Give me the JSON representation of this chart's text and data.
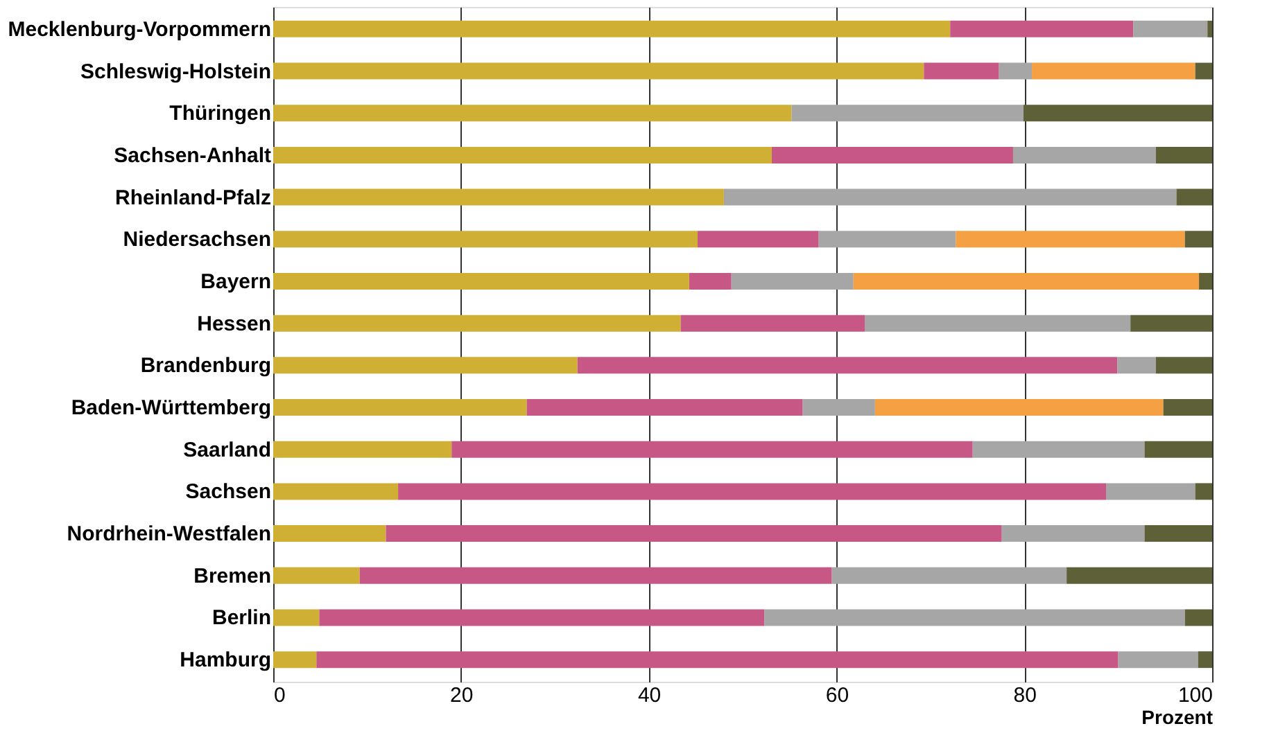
{
  "chart_data": {
    "type": "bar",
    "orientation": "horizontal",
    "stacked": true,
    "xlabel": "Prozent",
    "xlim": [
      0,
      100
    ],
    "xticks": [
      0,
      20,
      40,
      60,
      80,
      100
    ],
    "grid": "x",
    "legend": false,
    "categories": [
      "Mecklenburg-Vorpommern",
      "Schleswig-Holstein",
      "Thüringen",
      "Sachsen-Anhalt",
      "Rheinland-Pfalz",
      "Niedersachsen",
      "Bayern",
      "Hessen",
      "Brandenburg",
      "Baden-Württemberg",
      "Saarland",
      "Sachsen",
      "Nordrhein-Westfalen",
      "Bremen",
      "Berlin",
      "Hamburg"
    ],
    "series": [
      {
        "color": "#cfb034",
        "values": [
          72.1,
          69.3,
          55.2,
          53.1,
          48.0,
          45.2,
          44.3,
          43.4,
          32.4,
          27.0,
          19.0,
          13.3,
          12.0,
          9.2,
          4.9,
          4.6
        ]
      },
      {
        "color": "#c75886",
        "values": [
          19.5,
          8.0,
          null,
          25.7,
          null,
          12.9,
          4.5,
          19.6,
          57.5,
          29.4,
          55.5,
          75.4,
          65.6,
          50.3,
          47.4,
          85.4
        ]
      },
      {
        "color": "#a6a6a6",
        "values": [
          7.9,
          3.5,
          24.7,
          15.2,
          48.2,
          14.6,
          13.0,
          28.3,
          4.1,
          7.7,
          18.3,
          9.5,
          15.2,
          25.0,
          44.8,
          8.5
        ]
      },
      {
        "color": "#f5a042",
        "values": [
          null,
          17.4,
          null,
          null,
          null,
          24.4,
          36.8,
          null,
          null,
          30.7,
          null,
          null,
          null,
          null,
          null,
          null
        ]
      },
      {
        "color": "#5e6137",
        "values": [
          0.5,
          1.8,
          20.1,
          6.0,
          3.8,
          2.9,
          1.4,
          8.7,
          6.0,
          5.2,
          7.2,
          1.8,
          7.2,
          15.5,
          2.9,
          1.5
        ]
      }
    ]
  }
}
